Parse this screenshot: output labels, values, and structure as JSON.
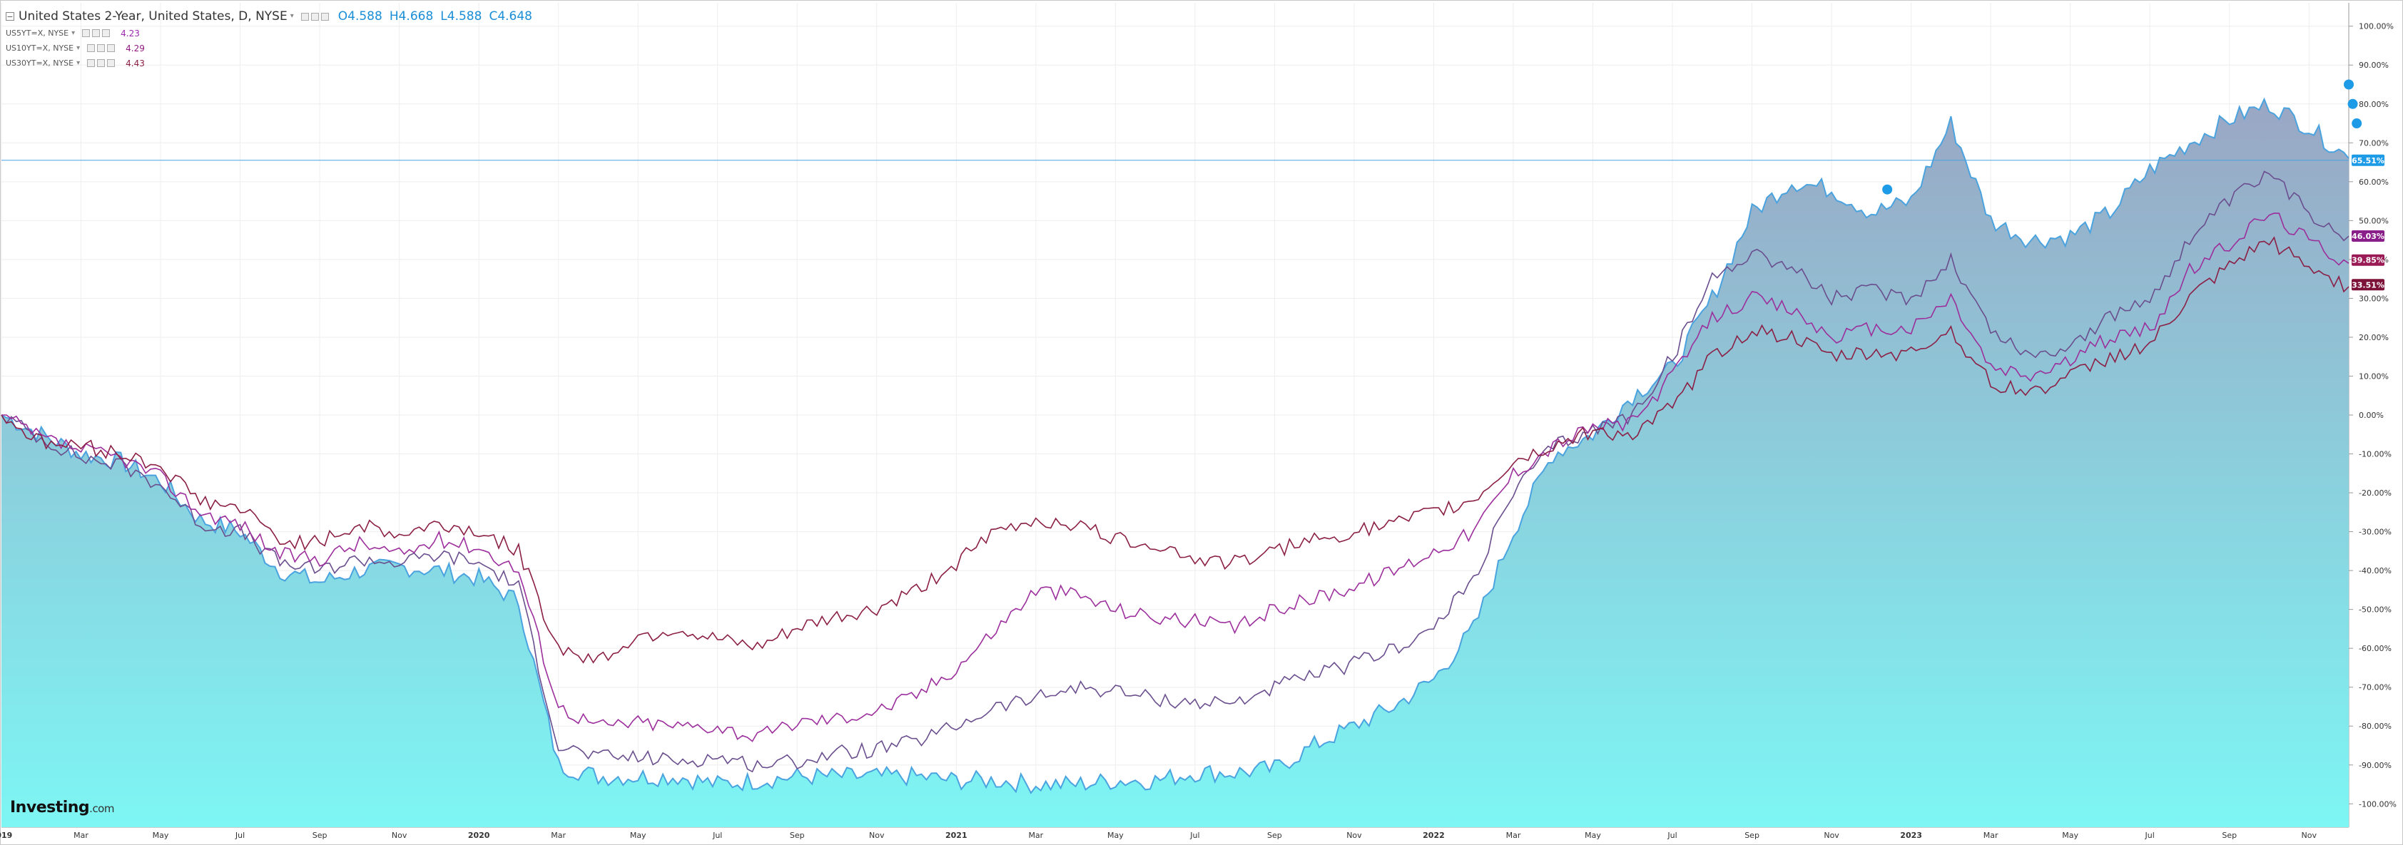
{
  "legend": {
    "main_title": "United States 2-Year, United States, D, NYSE",
    "ohlc": [
      {
        "key": "O",
        "value": "4.588"
      },
      {
        "key": "H",
        "value": "4.668"
      },
      {
        "key": "L",
        "value": "4.588"
      },
      {
        "key": "C",
        "value": "4.648"
      }
    ],
    "series": [
      {
        "name": "US5YT=X, NYSE",
        "last": "4.23",
        "color": "#9c27b0"
      },
      {
        "name": "US10YT=X, NYSE",
        "last": "4.29",
        "color": "#8e1a7e"
      },
      {
        "name": "US30YT=X, NYSE",
        "last": "4.43",
        "color": "#8b1f45"
      }
    ]
  },
  "logo": {
    "brand": "Investing",
    "suffix": ".com"
  },
  "colors": {
    "main_line": "#4aa3df",
    "area_top": "#9aa6c4",
    "area_bottom": "#7df6f4",
    "us5y": "#6a4e8e",
    "us10y": "#9c2f9c",
    "us30y": "#8b1f45",
    "badge_main": "#1e9be6",
    "badge_5y": "#8a1f8a",
    "badge_10y": "#9a1a55",
    "badge_30y": "#7d1238"
  },
  "chart_data": {
    "type": "area",
    "scale": "percent change",
    "ylim": [
      -106,
      106
    ],
    "y_ticks": [
      "100.00%",
      "90.00%",
      "80.00%",
      "70.00%",
      "60.00%",
      "50.00%",
      "40.00%",
      "30.00%",
      "20.00%",
      "10.00%",
      "0.00%",
      "-10.00%",
      "-20.00%",
      "-30.00%",
      "-40.00%",
      "-50.00%",
      "-60.00%",
      "-70.00%",
      "-80.00%",
      "-90.00%",
      "-100.00%"
    ],
    "x_ticks": [
      "2019",
      "Mar",
      "May",
      "Jul",
      "Sep",
      "Nov",
      "2020",
      "Mar",
      "May",
      "Jul",
      "Sep",
      "Nov",
      "2021",
      "Mar",
      "May",
      "Jul",
      "Sep",
      "Nov",
      "2022",
      "Mar",
      "May",
      "Jul",
      "Sep",
      "Nov",
      "2023",
      "Mar",
      "May",
      "Jul",
      "Sep",
      "Nov"
    ],
    "x_bold": [
      "2019",
      "2020",
      "2021",
      "2022",
      "2023"
    ],
    "grid": true,
    "last_value_labels": [
      {
        "series": "United States 2-Year",
        "label": "65.51%",
        "value": 65.51
      },
      {
        "series": "US5YT=X",
        "label": "46.03%",
        "value": 46.03
      },
      {
        "series": "US10YT=X",
        "label": "39.85%",
        "value": 39.85
      },
      {
        "series": "US30YT=X",
        "label": "33.51%",
        "value": 33.51
      }
    ],
    "x": [
      "2019-01",
      "2019-02",
      "2019-03",
      "2019-04",
      "2019-05",
      "2019-06",
      "2019-07",
      "2019-08",
      "2019-09",
      "2019-10",
      "2019-11",
      "2019-12",
      "2020-01",
      "2020-02",
      "2020-03",
      "2020-04",
      "2020-05",
      "2020-06",
      "2020-07",
      "2020-08",
      "2020-09",
      "2020-10",
      "2020-11",
      "2020-12",
      "2021-01",
      "2021-02",
      "2021-03",
      "2021-04",
      "2021-05",
      "2021-06",
      "2021-07",
      "2021-08",
      "2021-09",
      "2021-10",
      "2021-11",
      "2021-12",
      "2022-01",
      "2022-02",
      "2022-03",
      "2022-04",
      "2022-05",
      "2022-06",
      "2022-07",
      "2022-08",
      "2022-09",
      "2022-10",
      "2022-11",
      "2022-12",
      "2023-01",
      "2023-02",
      "2023-03",
      "2023-04",
      "2023-05",
      "2023-06",
      "2023-07",
      "2023-08",
      "2023-09",
      "2023-10",
      "2023-11",
      "2023-12"
    ],
    "series": [
      {
        "name": "United States 2-Year",
        "values": [
          0,
          -5,
          -10,
          -12,
          -17,
          -27,
          -30,
          -40,
          -43,
          -40,
          -39,
          -40,
          -42,
          -48,
          -90,
          -93,
          -93,
          -93,
          -95,
          -94,
          -93,
          -93,
          -93,
          -93,
          -94,
          -94,
          -95,
          -95,
          -94,
          -94,
          -92,
          -92,
          -91,
          -85,
          -80,
          -75,
          -68,
          -55,
          -30,
          -10,
          -5,
          5,
          12,
          30,
          52,
          60,
          58,
          52,
          55,
          75,
          50,
          45,
          46,
          52,
          63,
          70,
          76,
          80,
          74,
          66
        ]
      },
      {
        "name": "US5YT=X",
        "values": [
          0,
          -6,
          -11,
          -13,
          -18,
          -28,
          -30,
          -38,
          -40,
          -37,
          -38,
          -36,
          -38,
          -44,
          -85,
          -88,
          -88,
          -89,
          -88,
          -90,
          -89,
          -87,
          -86,
          -84,
          -80,
          -75,
          -73,
          -70,
          -71,
          -73,
          -74,
          -74,
          -70,
          -67,
          -64,
          -60,
          -55,
          -42,
          -20,
          -8,
          -4,
          0,
          15,
          35,
          42,
          38,
          30,
          32,
          30,
          40,
          22,
          15,
          18,
          25,
          30,
          45,
          55,
          62,
          52,
          46
        ]
      },
      {
        "name": "US10YT=X",
        "values": [
          0,
          -6,
          -9,
          -11,
          -16,
          -25,
          -28,
          -36,
          -37,
          -33,
          -36,
          -32,
          -34,
          -40,
          -75,
          -80,
          -79,
          -80,
          -80,
          -83,
          -79,
          -78,
          -76,
          -72,
          -65,
          -55,
          -45,
          -46,
          -50,
          -52,
          -53,
          -55,
          -50,
          -47,
          -44,
          -40,
          -35,
          -30,
          -15,
          -8,
          -3,
          -2,
          10,
          25,
          30,
          27,
          20,
          22,
          22,
          30,
          12,
          10,
          14,
          20,
          22,
          37,
          44,
          52,
          45,
          39
        ]
      },
      {
        "name": "US30YT=X",
        "values": [
          0,
          -7,
          -8,
          -10,
          -13,
          -22,
          -24,
          -32,
          -33,
          -28,
          -31,
          -28,
          -30,
          -35,
          -60,
          -63,
          -57,
          -55,
          -58,
          -60,
          -55,
          -52,
          -50,
          -45,
          -38,
          -30,
          -27,
          -28,
          -32,
          -33,
          -37,
          -38,
          -35,
          -32,
          -30,
          -28,
          -25,
          -22,
          -12,
          -8,
          -4,
          -5,
          2,
          15,
          22,
          20,
          15,
          16,
          16,
          22,
          8,
          6,
          10,
          15,
          18,
          30,
          38,
          45,
          38,
          33
        ]
      }
    ]
  }
}
